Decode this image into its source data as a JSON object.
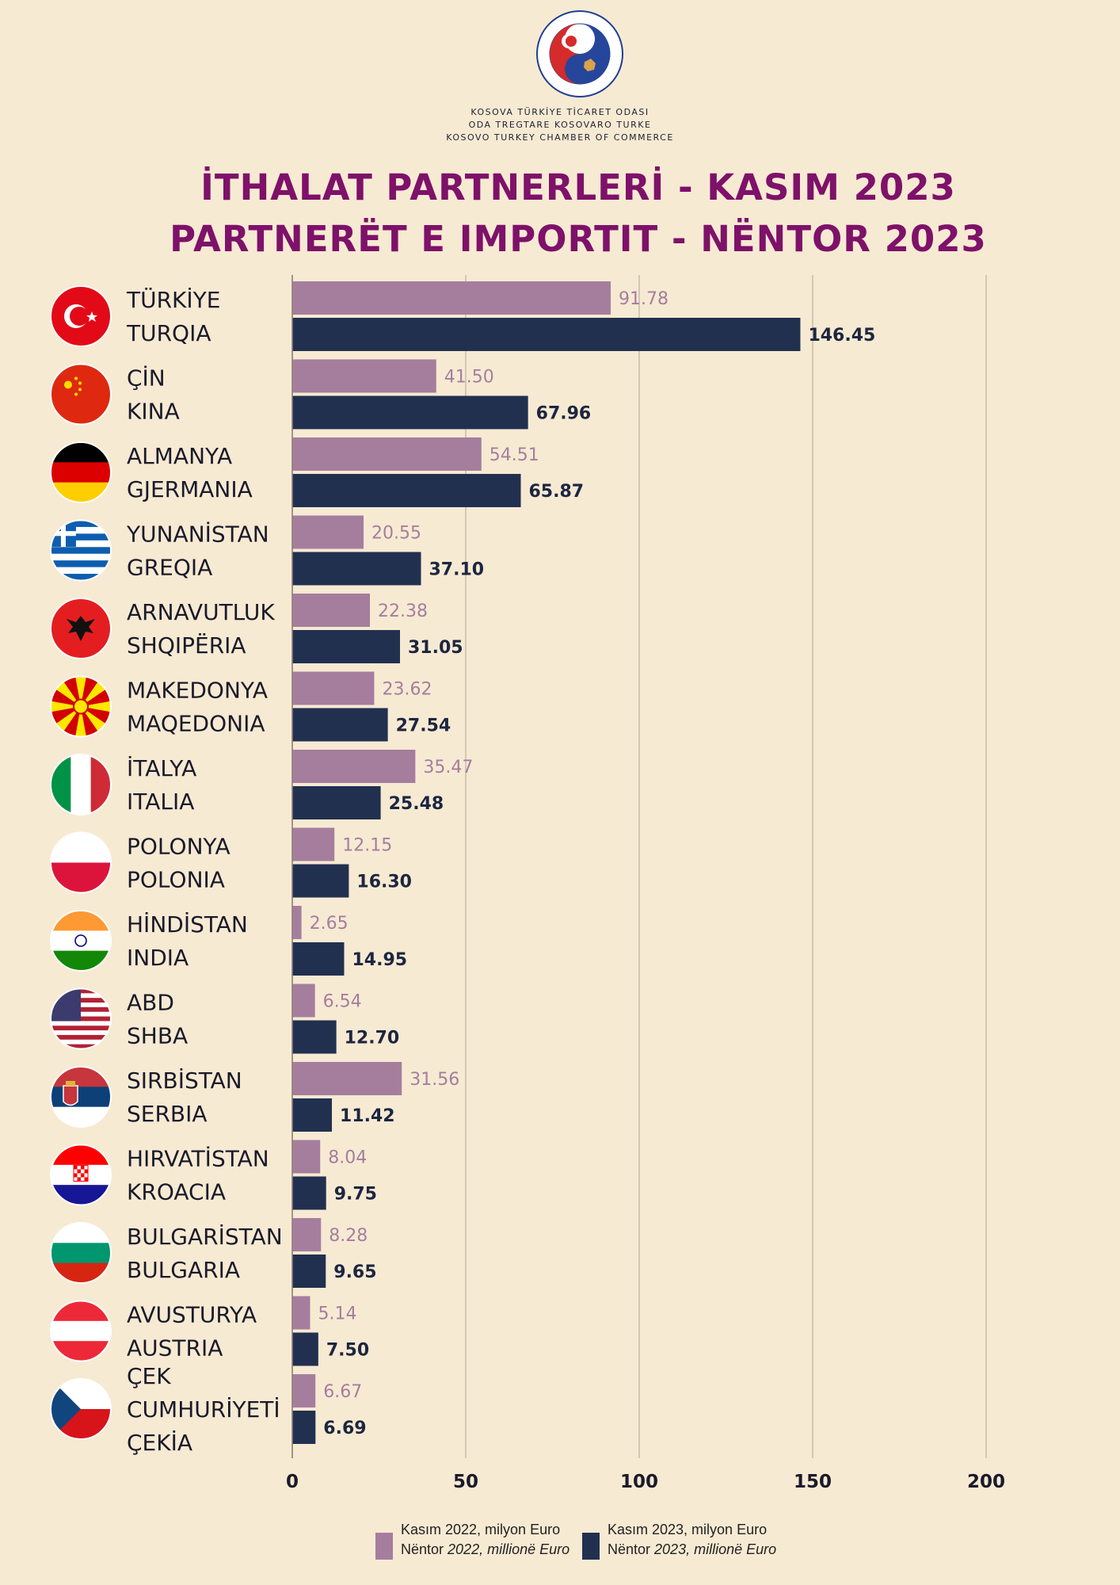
{
  "org_lines": [
    "KOSOVA TÜRKİYE TİCARET ODASI",
    "ODA TREGTARE KOSOVARO TURKE",
    "KOSOVO TURKEY CHAMBER OF COMMERCE"
  ],
  "logo_text": "ODA TREGTARE KOSOVARO TURKE · KOSOVA TÜRKİYE TİCARET ODASI",
  "title_line1": "İTHALAT PARTNERLERİ - KASIM 2023",
  "title_line2": "PARTNERËT E IMPORTIT - NËNTOR 2023",
  "colors": {
    "bg": "#f7ead3",
    "series2022": "#a57e9e",
    "series2023": "#223050",
    "title": "#7e1169",
    "grid": "#c9bcaa"
  },
  "legend": {
    "s2022_line1": "Kasım 2022, milyon Euro",
    "s2022_line2_a": "Nëntor ",
    "s2022_line2_b": "2022, millionë Euro",
    "s2023_line1": "Kasım 2023, milyon Euro",
    "s2023_line2_a": "Nëntor ",
    "s2023_line2_b": "2023, millionë Euro"
  },
  "chart_data": {
    "type": "bar",
    "orientation": "horizontal",
    "xlim": [
      0,
      200
    ],
    "xticks": [
      "0",
      "50",
      "100",
      "150",
      "200"
    ],
    "grid": true,
    "legend_position": "bottom-center",
    "categories": [
      {
        "lines": [
          "TÜRKİYE",
          "TURQIA"
        ],
        "flag": "turkey-flag-icon"
      },
      {
        "lines": [
          "ÇİN",
          "KINA"
        ],
        "flag": "china-flag-icon"
      },
      {
        "lines": [
          "ALMANYA",
          "GJERMANIA"
        ],
        "flag": "germany-flag-icon"
      },
      {
        "lines": [
          "YUNANİSTAN",
          "GREQIA"
        ],
        "flag": "greece-flag-icon"
      },
      {
        "lines": [
          "ARNAVUTLUK",
          "SHQIPËRIA"
        ],
        "flag": "albania-flag-icon"
      },
      {
        "lines": [
          "MAKEDONYA",
          "MAQEDONIA"
        ],
        "flag": "north-macedonia-flag-icon"
      },
      {
        "lines": [
          "İTALYA",
          "ITALIA"
        ],
        "flag": "italy-flag-icon"
      },
      {
        "lines": [
          "POLONYA",
          "POLONIA"
        ],
        "flag": "poland-flag-icon"
      },
      {
        "lines": [
          "HİNDİSTAN",
          "INDIA"
        ],
        "flag": "india-flag-icon"
      },
      {
        "lines": [
          "ABD",
          "SHBA"
        ],
        "flag": "usa-flag-icon"
      },
      {
        "lines": [
          "SIRBİSTAN",
          "SERBIA"
        ],
        "flag": "serbia-flag-icon"
      },
      {
        "lines": [
          "HIRVATİSTAN",
          "KROACIA"
        ],
        "flag": "croatia-flag-icon"
      },
      {
        "lines": [
          "BULGARİSTAN",
          "BULGARIA"
        ],
        "flag": "bulgaria-flag-icon"
      },
      {
        "lines": [
          "AVUSTURYA",
          "AUSTRIA"
        ],
        "flag": "austria-flag-icon"
      },
      {
        "lines": [
          "ÇEK",
          "CUMHURİYETİ",
          "ÇEKİA"
        ],
        "flag": "czech-flag-icon"
      }
    ],
    "series": [
      {
        "name": "Kasım 2022, milyon Euro / Nëntor 2022, millionë Euro",
        "values": [
          91.78,
          41.5,
          54.51,
          20.55,
          22.38,
          23.62,
          35.47,
          12.15,
          2.65,
          6.54,
          31.56,
          8.04,
          8.28,
          5.14,
          6.67
        ],
        "labels": [
          "91.78",
          "41.50",
          "54.51",
          "20.55",
          "22.38",
          "23.62",
          "35.47",
          "12.15",
          "2.65",
          "6.54",
          "31.56",
          "8.04",
          "8.28",
          "5.14",
          "6.67"
        ]
      },
      {
        "name": "Kasım 2023, milyon Euro / Nëntor 2023, millionë Euro",
        "values": [
          146.45,
          67.96,
          65.87,
          37.1,
          31.05,
          27.54,
          25.48,
          16.3,
          14.95,
          12.7,
          11.42,
          9.75,
          9.65,
          7.5,
          6.69
        ],
        "labels": [
          "146.45",
          "67.96",
          "65.87",
          "37.10",
          "31.05",
          "27.54",
          "25.48",
          "16.30",
          "14.95",
          "12.70",
          "11.42",
          "9.75",
          "9.65",
          "7.50",
          "6.69"
        ]
      }
    ]
  }
}
